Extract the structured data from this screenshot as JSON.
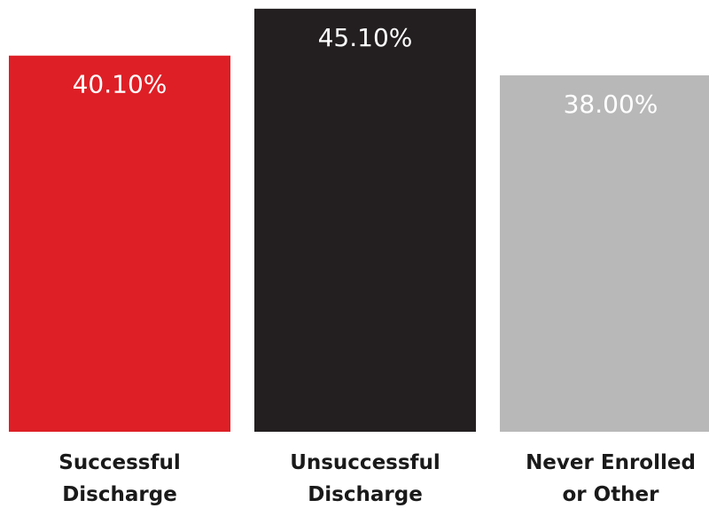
{
  "chart_data": {
    "type": "bar",
    "categories": [
      [
        "Successful",
        "Discharge"
      ],
      [
        "Unsuccessful",
        "Discharge"
      ],
      [
        "Never Enrolled",
        "or Other"
      ]
    ],
    "values": [
      40.1,
      45.1,
      38.0
    ],
    "value_labels": [
      "40.10%",
      "45.10%",
      "38.00%"
    ],
    "colors": [
      "#de1f26",
      "#231f20",
      "#b8b8b8"
    ],
    "title": "",
    "xlabel": "",
    "ylabel": "",
    "axes_visible": false,
    "grid": false,
    "legend": "none"
  }
}
